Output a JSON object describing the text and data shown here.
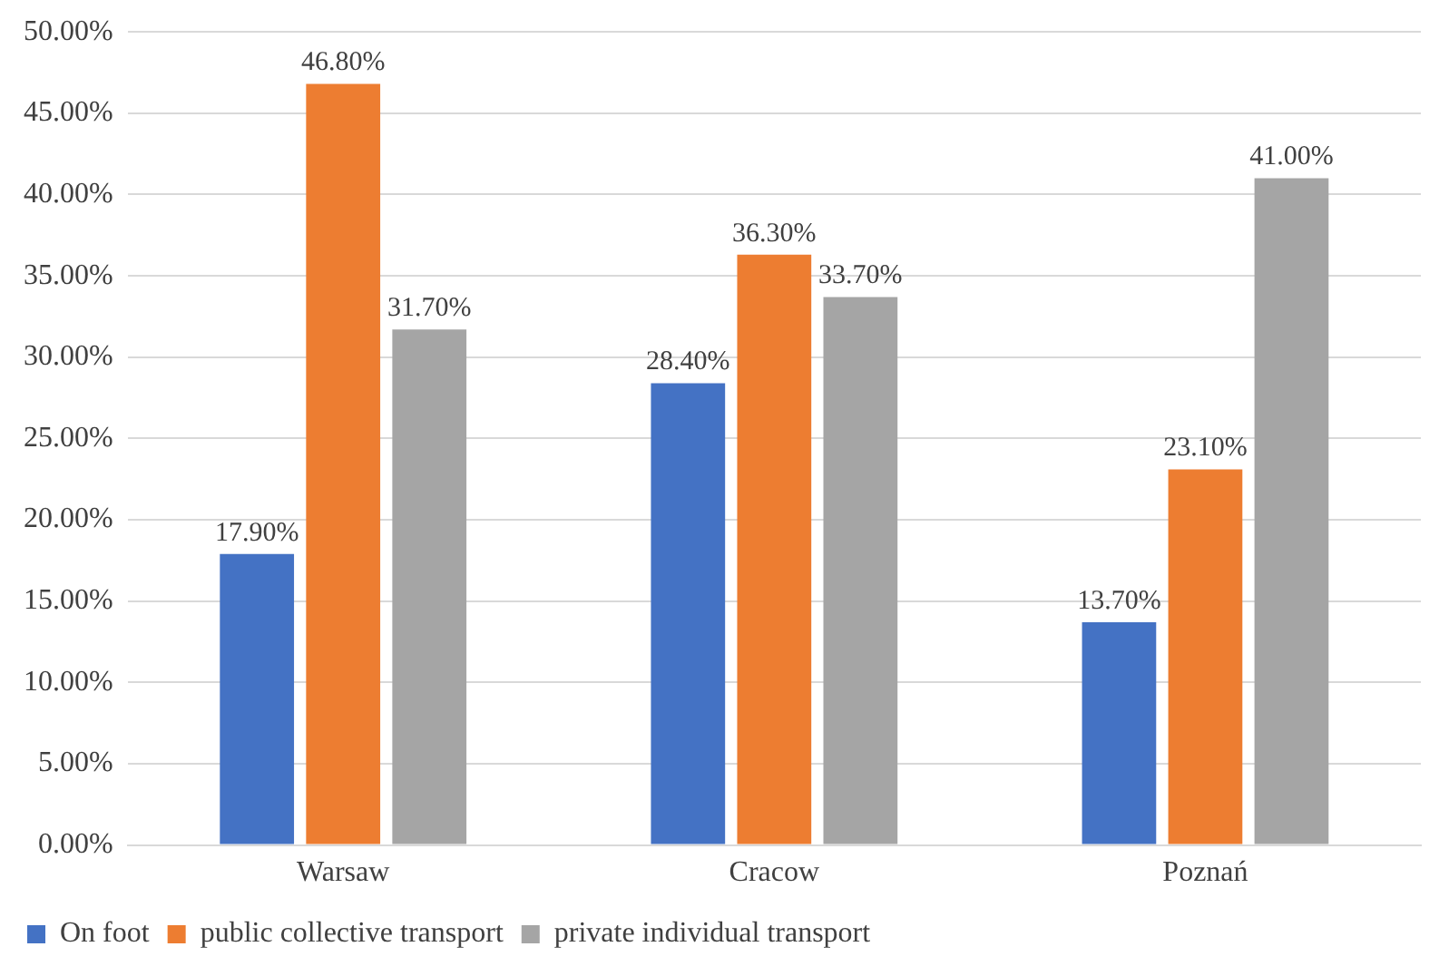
{
  "chart_data": {
    "type": "bar",
    "categories": [
      "Warsaw",
      "Cracow",
      "Poznań"
    ],
    "series": [
      {
        "name": "On foot",
        "color": "#4472c4",
        "values": [
          17.9,
          28.4,
          13.7
        ],
        "value_labels": [
          "17.90%",
          "28.40%",
          "13.70%"
        ]
      },
      {
        "name": "public collective transport",
        "color": "#ed7d31",
        "values": [
          46.8,
          36.3,
          23.1
        ],
        "value_labels": [
          "46.80%",
          "36.30%",
          "23.10%"
        ]
      },
      {
        "name": "private individual transport",
        "color": "#a5a5a5",
        "values": [
          31.7,
          33.7,
          41.0
        ],
        "value_labels": [
          "31.70%",
          "33.70%",
          "41.00%"
        ]
      }
    ],
    "ylim": [
      0,
      50
    ],
    "yticks": [
      {
        "value": 0,
        "label": "0.00%"
      },
      {
        "value": 5,
        "label": "5.00%"
      },
      {
        "value": 10,
        "label": "10.00%"
      },
      {
        "value": 15,
        "label": "15.00%"
      },
      {
        "value": 20,
        "label": "20.00%"
      },
      {
        "value": 25,
        "label": "25.00%"
      },
      {
        "value": 30,
        "label": "30.00%"
      },
      {
        "value": 35,
        "label": "35.00%"
      },
      {
        "value": 40,
        "label": "40.00%"
      },
      {
        "value": 45,
        "label": "45.00%"
      },
      {
        "value": 50,
        "label": "50.00%"
      }
    ],
    "grid": "y",
    "legend": "bottom left"
  }
}
